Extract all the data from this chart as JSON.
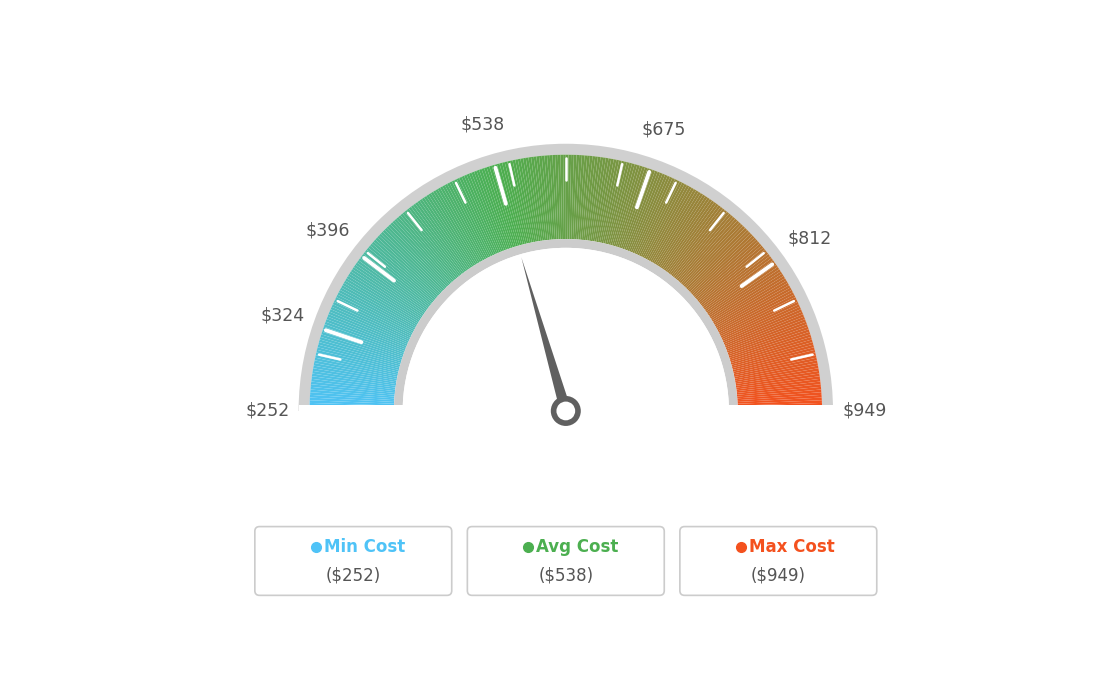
{
  "min_val": 252,
  "avg_val": 538,
  "max_val": 949,
  "tick_labels": [
    "$252",
    "$324",
    "$396",
    "$538",
    "$675",
    "$812",
    "$949"
  ],
  "tick_values": [
    252,
    324,
    396,
    538,
    675,
    812,
    949
  ],
  "color_stops": [
    [
      0.0,
      [
        79,
        195,
        247
      ]
    ],
    [
      0.41,
      [
        76,
        175,
        80
      ]
    ],
    [
      1.0,
      [
        244,
        81,
        30
      ]
    ]
  ],
  "legend_items": [
    {
      "label": "Min Cost",
      "value": "($252)",
      "color": "#4FC3F7"
    },
    {
      "label": "Avg Cost",
      "value": "($538)",
      "color": "#4CAF50"
    },
    {
      "label": "Max Cost",
      "value": "($949)",
      "color": "#F4511E"
    }
  ],
  "background_color": "#ffffff",
  "outer_border_color": "#d0d0d0",
  "inner_ring_color": "#cccccc",
  "needle_color": "#606060",
  "needle_circle_color": "#606060"
}
